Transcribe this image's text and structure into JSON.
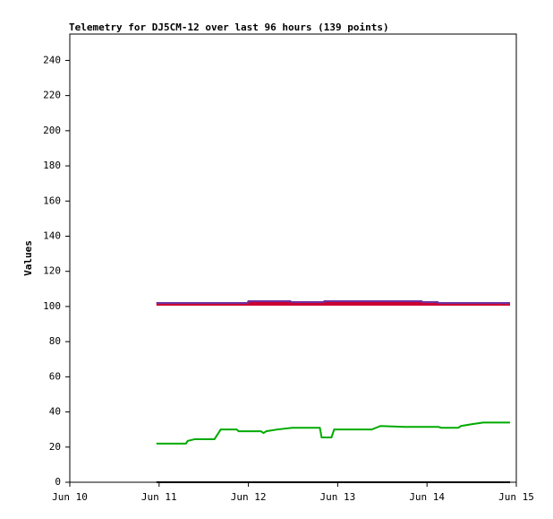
{
  "chart_data": {
    "type": "line",
    "title": "Telemetry for DJ5CM-12 over last 96 hours (139 points)",
    "y_label": "Values",
    "xlim": [
      10,
      15
    ],
    "xticks": [
      {
        "value": 10,
        "label": "Jun 10"
      },
      {
        "value": 11,
        "label": "Jun 11"
      },
      {
        "value": 12,
        "label": "Jun 12"
      },
      {
        "value": 13,
        "label": "Jun 13"
      },
      {
        "value": 14,
        "label": "Jun 14"
      },
      {
        "value": 15,
        "label": "Jun 15"
      }
    ],
    "ylim": [
      0,
      255
    ],
    "yticks": [
      0,
      20,
      40,
      60,
      80,
      100,
      120,
      140,
      160,
      180,
      200,
      220,
      240
    ],
    "series": [
      {
        "color": "#cc0033",
        "x": [
          10.97,
          11.43,
          11.44,
          12.0,
          14.1,
          14.93
        ],
        "values": [
          101.5,
          101.5,
          101.5,
          101.5,
          101.5,
          101.5
        ]
      },
      {
        "color": "#7030a0",
        "x": [
          10.97,
          11.99,
          12.0,
          12.47,
          12.48,
          12.84,
          12.85,
          13.94,
          13.95,
          14.12,
          14.13,
          14.93
        ],
        "values": [
          102,
          102,
          103,
          103,
          102.5,
          102.5,
          103,
          103,
          102.5,
          102.5,
          102,
          102
        ]
      },
      {
        "color": "#00aa00",
        "x": [
          10.97,
          11.3,
          11.32,
          11.4,
          11.62,
          11.69,
          11.87,
          11.89,
          12.14,
          12.17,
          12.2,
          12.32,
          12.49,
          12.8,
          12.82,
          12.93,
          12.96,
          13.38,
          13.48,
          13.75,
          14.13,
          14.16,
          14.35,
          14.38,
          14.5,
          14.63,
          14.93
        ],
        "values": [
          22,
          22,
          23.5,
          24.5,
          24.5,
          30,
          30,
          29,
          29,
          28,
          29,
          30,
          31,
          31,
          25.5,
          25.5,
          30,
          30,
          32,
          31.5,
          31.5,
          31,
          31,
          32,
          33,
          34,
          34
        ]
      },
      {
        "color": "#000000",
        "x": [
          10.97,
          14.93
        ],
        "values": [
          0,
          0
        ]
      }
    ]
  }
}
